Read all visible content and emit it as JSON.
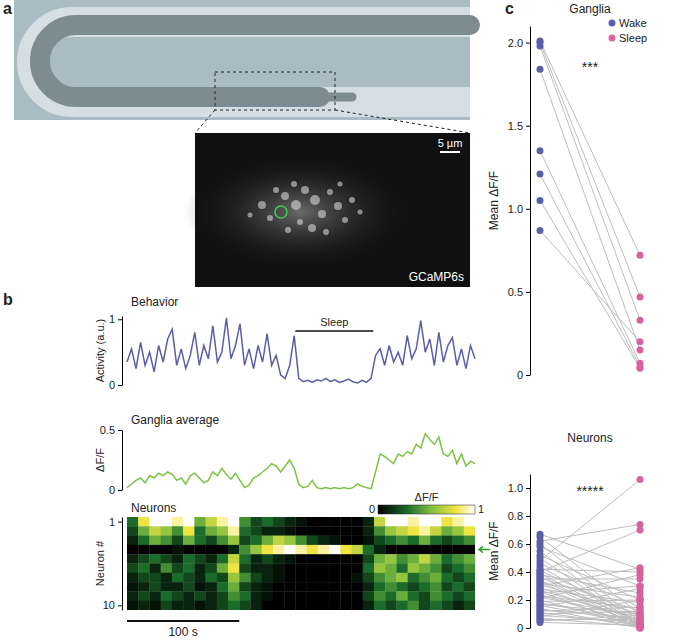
{
  "chart_data": [
    {
      "type": "image",
      "panel": "a",
      "label": "GCaMP6s",
      "scale_bar": {
        "value": 5,
        "label": "5 µm"
      }
    },
    {
      "type": "line",
      "panel": "b",
      "title": "Behavior",
      "y_label": "Activity (a.u.)",
      "color": "#5b5ea6",
      "x": [
        0,
        4,
        8,
        12,
        16,
        20,
        24,
        28,
        32,
        36,
        40,
        44,
        48,
        52,
        56,
        60,
        64,
        68,
        72,
        76,
        80,
        84,
        88,
        92,
        96,
        100,
        104,
        108,
        112,
        116,
        120,
        124,
        128,
        132,
        136,
        140,
        144,
        148,
        152,
        156,
        160,
        164,
        168,
        172,
        176,
        180,
        184,
        188,
        192,
        196,
        200,
        204,
        208,
        212,
        216,
        220,
        224,
        228,
        232,
        236,
        240,
        244,
        248,
        252,
        256,
        260,
        264,
        268,
        272,
        276,
        280,
        284,
        288,
        292,
        296,
        300,
        304,
        308
      ],
      "values": [
        0.35,
        0.55,
        0.25,
        0.65,
        0.3,
        0.5,
        0.2,
        0.6,
        0.35,
        0.7,
        0.85,
        0.3,
        0.55,
        0.25,
        0.45,
        0.8,
        0.3,
        0.6,
        0.4,
        0.9,
        0.35,
        0.5,
        1.02,
        0.4,
        0.6,
        0.93,
        0.3,
        0.55,
        0.25,
        0.6,
        0.35,
        0.78,
        0.3,
        0.45,
        0.15,
        0.1,
        0.3,
        0.75,
        0.1,
        0.05,
        0.07,
        0.04,
        0.08,
        0.06,
        0.1,
        0.05,
        0.08,
        0.04,
        0.06,
        0.09,
        0.05,
        0.03,
        0.07,
        0.04,
        0.1,
        0.45,
        0.55,
        0.3,
        0.6,
        0.35,
        0.5,
        0.3,
        0.75,
        0.4,
        0.55,
        0.98,
        0.5,
        0.7,
        0.3,
        0.8,
        0.35,
        0.6,
        0.72,
        0.3,
        0.55,
        0.25,
        0.6,
        0.4
      ],
      "ylim": [
        0,
        1.05
      ],
      "yticks": [
        0,
        1
      ],
      "tick_labels": "y",
      "annotation": {
        "text": "Sleep",
        "x": [
          149,
          218
        ]
      }
    },
    {
      "type": "line",
      "title": "Ganglia average",
      "y_label": "ΔF/F",
      "color": "#7dc242",
      "x": [
        0,
        4,
        8,
        12,
        16,
        20,
        24,
        28,
        32,
        36,
        40,
        44,
        48,
        52,
        56,
        60,
        64,
        68,
        72,
        76,
        80,
        84,
        88,
        92,
        96,
        100,
        104,
        108,
        112,
        116,
        120,
        124,
        128,
        132,
        136,
        140,
        144,
        148,
        152,
        156,
        160,
        164,
        168,
        172,
        176,
        180,
        184,
        188,
        192,
        196,
        200,
        204,
        208,
        212,
        216,
        220,
        224,
        228,
        232,
        236,
        240,
        244,
        248,
        252,
        256,
        260,
        264,
        268,
        272,
        276,
        280,
        284,
        288,
        292,
        296,
        300,
        304,
        308
      ],
      "values": [
        0.02,
        0.05,
        0.08,
        0.1,
        0.06,
        0.12,
        0.1,
        0.14,
        0.12,
        0.15,
        0.13,
        0.08,
        0.1,
        0.05,
        0.12,
        0.14,
        0.1,
        0.06,
        0.08,
        0.15,
        0.12,
        0.18,
        0.13,
        0.09,
        0.14,
        0.08,
        0.02,
        0.04,
        0.1,
        0.12,
        0.15,
        0.18,
        0.22,
        0.2,
        0.15,
        0.2,
        0.25,
        0.18,
        0.05,
        0.02,
        0.03,
        0.08,
        0.02,
        0.01,
        0.02,
        0.01,
        0.02,
        0.01,
        0.02,
        0.01,
        0.02,
        0.05,
        0.03,
        0.02,
        0.01,
        0.15,
        0.3,
        0.28,
        0.25,
        0.22,
        0.3,
        0.28,
        0.32,
        0.3,
        0.38,
        0.35,
        0.47,
        0.42,
        0.38,
        0.44,
        0.3,
        0.28,
        0.33,
        0.22,
        0.3,
        0.2,
        0.24,
        0.22
      ],
      "ylim": [
        0,
        0.5
      ],
      "yticks": [
        0,
        0.5
      ],
      "tick_labels": "y"
    },
    {
      "type": "heatmap",
      "title": "Neurons",
      "y_label": "Neuron #",
      "x": [
        0,
        10,
        20,
        30,
        40,
        50,
        60,
        70,
        80,
        90,
        100,
        110,
        120,
        130,
        140,
        150,
        160,
        170,
        180,
        190,
        200,
        210,
        220,
        230,
        240,
        250,
        260,
        270,
        280,
        290,
        300,
        310
      ],
      "ylim": [
        0.5,
        10.5
      ],
      "yticks": [
        1,
        10
      ],
      "tick_labels": "y",
      "marked_neuron": 4,
      "cells": [
        [
          0.3,
          0.8,
          1,
          1,
          0.9,
          1,
          0.5,
          0.7,
          0.9,
          1,
          0.4,
          0.2,
          0.3,
          0.2,
          0.1,
          0.05,
          0,
          0,
          0,
          0,
          0,
          0.1,
          0.7,
          1,
          1,
          0.9,
          1,
          1,
          0.8,
          0.9,
          1
        ],
        [
          0.2,
          0.5,
          0.7,
          0.6,
          0.4,
          0.8,
          0.3,
          0.5,
          0.6,
          0.9,
          0.3,
          0.2,
          0.1,
          0.1,
          0.05,
          0,
          0,
          0,
          0,
          0,
          0,
          0.1,
          0.4,
          0.6,
          0.7,
          0.8,
          0.9,
          0.7,
          0.5,
          0.6,
          0.8
        ],
        [
          0.1,
          0.3,
          0.5,
          0.4,
          0.2,
          0.5,
          0.3,
          0.2,
          0.4,
          0.6,
          0.2,
          0.3,
          0.5,
          0.7,
          0.6,
          0.4,
          0.2,
          0.1,
          0.05,
          0,
          0,
          0.05,
          0.2,
          0.3,
          0.4,
          0.3,
          0.5,
          0.3,
          0.2,
          0.3,
          0.4
        ],
        [
          0,
          0,
          0,
          0,
          0.05,
          0,
          0,
          0,
          0,
          0.1,
          0.4,
          0.6,
          0.8,
          0.9,
          1,
          0.9,
          0.8,
          0.9,
          1,
          0.8,
          0.7,
          0.3,
          0.1,
          0,
          0,
          0,
          0,
          0,
          0,
          0,
          0
        ],
        [
          0.1,
          0.2,
          0.3,
          0.2,
          0.1,
          0.3,
          0.2,
          0.1,
          0.3,
          0.7,
          0.3,
          0.1,
          0.2,
          0.1,
          0.05,
          0,
          0,
          0,
          0,
          0,
          0,
          0.2,
          0.5,
          0.6,
          0.4,
          0.5,
          0.7,
          0.5,
          0.3,
          0.4,
          0.5
        ],
        [
          0.2,
          0.3,
          0.1,
          0.4,
          0.2,
          0.3,
          0.1,
          0.2,
          0.5,
          0.8,
          0.2,
          0.1,
          0.1,
          0.05,
          0,
          0,
          0,
          0,
          0,
          0,
          0,
          0.3,
          0.6,
          0.5,
          0.3,
          0.6,
          0.5,
          0.4,
          0.2,
          0.3,
          0.4
        ],
        [
          0.1,
          0.2,
          0.2,
          0.1,
          0.3,
          0.2,
          0.1,
          0.3,
          0.2,
          0.6,
          0.4,
          0.2,
          0.1,
          0.05,
          0,
          0,
          0,
          0,
          0,
          0,
          0.05,
          0.2,
          0.4,
          0.5,
          0.6,
          0.3,
          0.4,
          0.5,
          0.3,
          0.2,
          0.3
        ],
        [
          0.05,
          0.1,
          0.2,
          0.1,
          0.1,
          0.2,
          0.05,
          0.1,
          0.3,
          0.5,
          0.2,
          0.1,
          0.05,
          0,
          0,
          0,
          0,
          0,
          0,
          0,
          0,
          0.1,
          0.3,
          0.4,
          0.3,
          0.2,
          0.3,
          0.4,
          0.2,
          0.3,
          0.2
        ],
        [
          0.1,
          0.2,
          0.1,
          0.3,
          0.2,
          0.1,
          0.2,
          0.1,
          0.2,
          0.4,
          0.3,
          0.1,
          0.05,
          0,
          0,
          0,
          0,
          0,
          0,
          0,
          0,
          0.2,
          0.4,
          0.3,
          0.5,
          0.3,
          0.2,
          0.4,
          0.3,
          0.2,
          0.3
        ],
        [
          0.05,
          0.1,
          0.05,
          0.2,
          0.1,
          0.1,
          0.05,
          0.1,
          0.2,
          0.3,
          0.2,
          0.1,
          0,
          0,
          0,
          0,
          0,
          0,
          0,
          0,
          0,
          0.1,
          0.3,
          0.2,
          0.3,
          0.4,
          0.2,
          0.3,
          0.2,
          0.1,
          0.2
        ]
      ],
      "colorbar": {
        "range": [
          0,
          1
        ],
        "ticks": [
          0,
          1
        ],
        "label": "ΔF/F"
      },
      "scale_bar": {
        "value": 100,
        "label": "100 s"
      }
    },
    {
      "type": "paired_scatter",
      "panel": "c",
      "title": "Ganglia",
      "y_label": "Mean ΔF/F",
      "annotation": "***",
      "legend": "top-right",
      "tick_labels": "y",
      "ylim": [
        0,
        2.1
      ],
      "yticks": [
        0,
        0.5,
        {
          "value": 1,
          "label": "1.0"
        },
        1.5,
        {
          "value": 2,
          "label": "2.0"
        }
      ],
      "series": [
        {
          "name": "Wake",
          "color": "#5b5ea6",
          "values": [
            2.01,
            2.0,
            1.98,
            1.84,
            1.35,
            1.21,
            1.05,
            0.87
          ]
        },
        {
          "name": "Sleep",
          "color": "#d9619e",
          "values": [
            0.72,
            0.47,
            0.33,
            0.15,
            0.07,
            0.05,
            0.04,
            0.2
          ]
        }
      ]
    },
    {
      "type": "paired_scatter",
      "title": "Neurons",
      "y_label": "Mean ΔF/F",
      "annotation": "*****",
      "tick_labels": "y",
      "ylim": [
        0,
        1.1
      ],
      "yticks": [
        0,
        0.2,
        0.4,
        0.6,
        0.8,
        {
          "value": 1,
          "label": "1.0"
        }
      ],
      "series": [
        {
          "color": "#5b5ea6",
          "values": [
            0.67,
            0.65,
            0.62,
            0.6,
            0.58,
            0.55,
            0.52,
            0.5,
            0.48,
            0.46,
            0.44,
            0.42,
            0.41,
            0.4,
            0.39,
            0.38,
            0.37,
            0.36,
            0.35,
            0.34,
            0.33,
            0.32,
            0.31,
            0.3,
            0.29,
            0.28,
            0.27,
            0.26,
            0.25,
            0.24,
            0.23,
            0.22,
            0.21,
            0.2,
            0.19,
            0.18,
            0.17,
            0.16,
            0.15,
            0.14,
            0.13,
            0.12,
            0.11,
            0.1,
            0.09,
            0.08,
            0.07,
            0.06,
            0.05,
            0.04
          ]
        },
        {
          "color": "#d9619e",
          "values": [
            0.42,
            0.1,
            0.74,
            0.05,
            0.3,
            0.02,
            0.2,
            0.01,
            1.06,
            0.15,
            0.03,
            0.4,
            0.08,
            0.7,
            0.02,
            0.25,
            0,
            0.12,
            0.35,
            0.05,
            0.01,
            0.22,
            0.1,
            0.43,
            0.03,
            0.18,
            0.06,
            0,
            0.3,
            0.02,
            0.14,
            0.08,
            0.38,
            0.01,
            0.2,
            0.05,
            0.1,
            0.03,
            0.28,
            0,
            0.07,
            0.15,
            0.02,
            0.12,
            0.04,
            0.2,
            0.01,
            0.06,
            0.09,
            0.02
          ]
        }
      ]
    }
  ]
}
